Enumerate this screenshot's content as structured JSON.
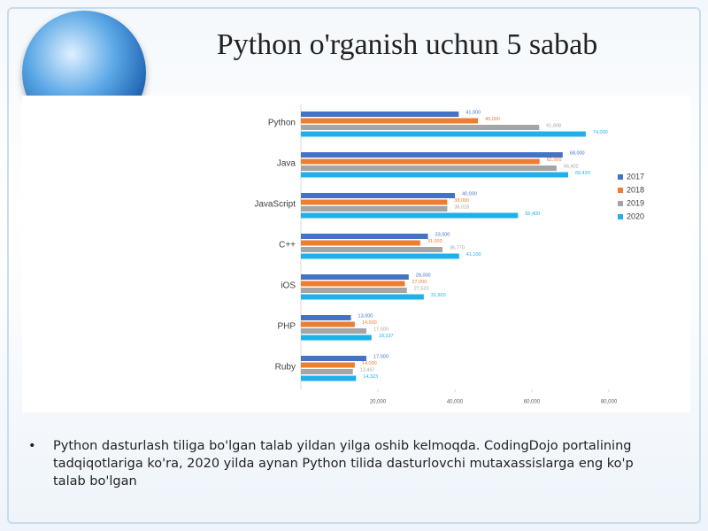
{
  "slide": {
    "title": "Python o'rganish uchun 5 sabab",
    "bullet": "Python dasturlash tiliga bo'lgan talab yildan yilga oshib kelmoqda. CodingDojo portalining tadqiqotlariga ko'ra, 2020 yilda aynan Python tilida dasturlovchi mutaxassislarga eng ko'p talab bo'lgan"
  },
  "chart_data": {
    "type": "hbar",
    "categories": [
      "Python",
      "Java",
      "JavaScript",
      "C++",
      "iOS",
      "PHP",
      "Ruby"
    ],
    "series": [
      {
        "name": "2017",
        "color": "#4472c4",
        "values": [
          41000,
          68000,
          40000,
          33000,
          28000,
          13000,
          17000
        ],
        "value_labels": [
          "41,000",
          "68,000",
          "40,000",
          "33,000",
          "28,000",
          "13,000",
          "17,000"
        ]
      },
      {
        "name": "2018",
        "color": "#ed7d31",
        "values": [
          46000,
          62000,
          38000,
          31000,
          27000,
          14000,
          14000
        ],
        "value_labels": [
          "46,000",
          "62,000",
          "38,000",
          "31,000",
          "27,000",
          "14,000",
          "14,000"
        ]
      },
      {
        "name": "2019",
        "color": "#a5a5a5",
        "values": [
          61898,
          66402,
          38018,
          36770,
          27520,
          17000,
          13497
        ],
        "value_labels": [
          "61,898",
          "66,402",
          "38,018",
          "36,770",
          "27,520",
          "17,000",
          "13,497"
        ]
      },
      {
        "name": "2020",
        "color": "#1fb0ea",
        "values": [
          74000,
          69420,
          56400,
          41100,
          31920,
          18337,
          14323
        ],
        "value_labels": [
          "74,000",
          "69,420",
          "56,400",
          "41,100",
          "31,920",
          "18,337",
          "14,323"
        ]
      }
    ],
    "xlim": [
      0,
      80000
    ],
    "xticks": [
      {
        "value": 20000,
        "label": "20,000"
      },
      {
        "value": 40000,
        "label": "40,000"
      },
      {
        "value": 60000,
        "label": "60,000"
      },
      {
        "value": 80000,
        "label": "80,000"
      }
    ],
    "legend": "right"
  }
}
